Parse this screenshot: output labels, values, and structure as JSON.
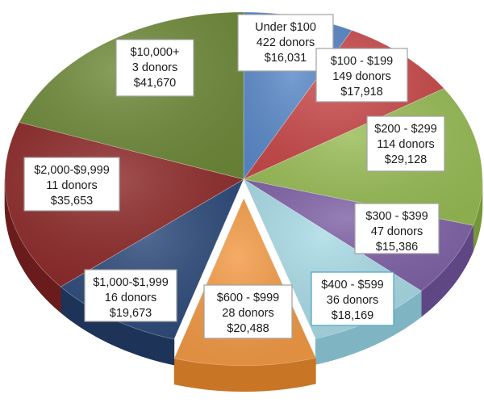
{
  "chart_data": {
    "type": "pie",
    "title": "",
    "unit": "$",
    "slices": [
      {
        "label": "Under $100",
        "donors": "422 donors",
        "amount": "$16,031",
        "value": 16031,
        "color": "#5b8ac9",
        "side": "#3a6aa8"
      },
      {
        "label": "$100 - $199",
        "donors": "149 donors",
        "amount": "$17,918",
        "value": 17918,
        "color": "#c9494a",
        "side": "#9d3132"
      },
      {
        "label": "$200 - $299",
        "donors": "114 donors",
        "amount": "$29,128",
        "value": 29128,
        "color": "#98bc55",
        "side": "#76963a"
      },
      {
        "label": "$300 - $399",
        "donors": "47 donors",
        "amount": "$15,386",
        "value": 15386,
        "color": "#7f62a6",
        "side": "#5f4684"
      },
      {
        "label": "$400 - $599",
        "donors": "36 donors",
        "amount": "$18,169",
        "value": 18169,
        "color": "#a9dbe6",
        "side": "#7fb5c3"
      },
      {
        "label": "$600 - $999",
        "donors": "28 donors",
        "amount": "$20,488",
        "value": 20488,
        "color": "#f39a45",
        "side": "#c87526"
      },
      {
        "label": "$1,000-$1,999",
        "donors": "16 donors",
        "amount": "$19,673",
        "value": 19673,
        "color": "#2c4a7a",
        "side": "#1d3358"
      },
      {
        "label": "$2,000-$9,999",
        "donors": "11 donors",
        "amount": "$35,653",
        "value": 35653,
        "color": "#8e2a2a",
        "side": "#6a1c1c"
      },
      {
        "label": "$10,000+",
        "donors": "3 donors",
        "amount": "$41,670",
        "value": 41670,
        "color": "#6f8a3a",
        "side": "#546a29"
      }
    ],
    "legend": "none",
    "style": "3d-exploded"
  }
}
